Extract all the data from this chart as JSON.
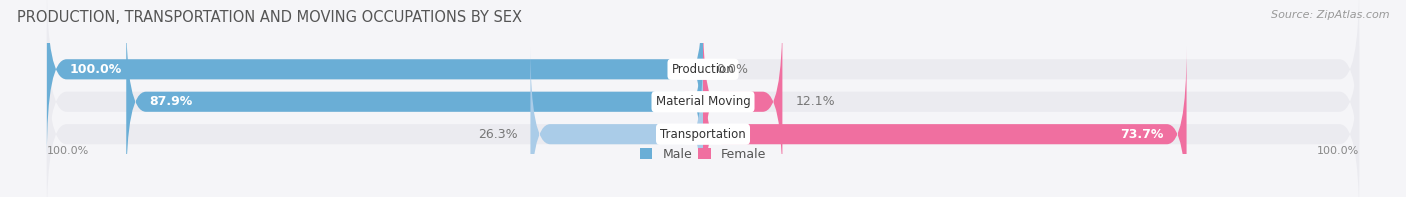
{
  "title": "PRODUCTION, TRANSPORTATION AND MOVING OCCUPATIONS BY SEX",
  "source": "Source: ZipAtlas.com",
  "categories": [
    "Production",
    "Material Moving",
    "Transportation"
  ],
  "male_values": [
    100.0,
    87.9,
    26.3
  ],
  "female_values": [
    0.0,
    12.1,
    73.7
  ],
  "male_color_strong": "#6aaed6",
  "male_color_light": "#aacce8",
  "female_color_strong": "#f06fa0",
  "female_color_light": "#f4a0c0",
  "bar_bg_color": "#ebebf0",
  "fig_bg_color": "#f5f5f8",
  "title_fontsize": 10.5,
  "source_fontsize": 8,
  "bar_label_fontsize": 9,
  "cat_label_fontsize": 8.5,
  "legend_fontsize": 9,
  "axis_label_fontsize": 8
}
